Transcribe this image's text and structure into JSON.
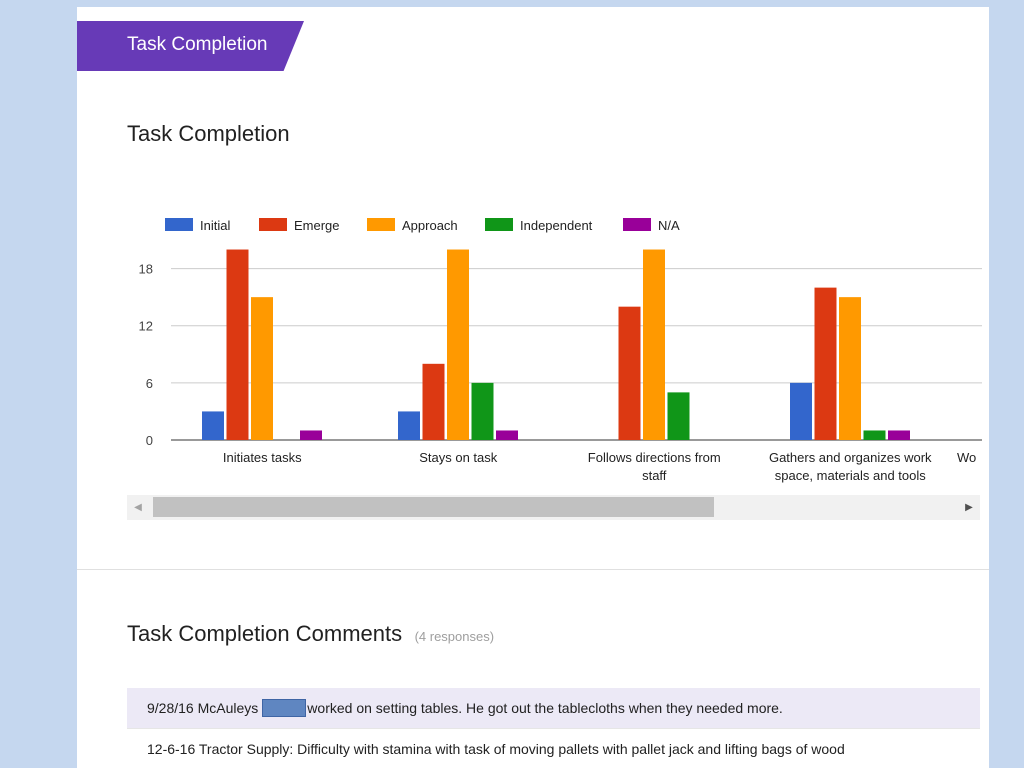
{
  "section": {
    "label": "Task Completion"
  },
  "question": {
    "title": "Task Completion"
  },
  "chart_data": {
    "type": "bar",
    "title": "",
    "xlabel": "",
    "ylabel": "",
    "ylim": [
      0,
      21
    ],
    "yticks": [
      0,
      6,
      12,
      18
    ],
    "grid": true,
    "legend_position": "top-left",
    "categories": [
      [
        "Initiates tasks"
      ],
      [
        "Stays on task"
      ],
      [
        "Follows directions from",
        "staff"
      ],
      [
        "Gathers and organizes work",
        "space, materials and tools"
      ],
      [
        "Wo"
      ]
    ],
    "series": [
      {
        "name": "Initial",
        "color": "#3366cc",
        "values": [
          3,
          3,
          0,
          6,
          null
        ]
      },
      {
        "name": "Emerge",
        "color": "#dc3912",
        "values": [
          20,
          8,
          14,
          16,
          null
        ]
      },
      {
        "name": "Approach",
        "color": "#ff9900",
        "values": [
          15,
          20,
          20,
          15,
          null
        ]
      },
      {
        "name": "Independent",
        "color": "#109618",
        "values": [
          0,
          6,
          5,
          1,
          null
        ]
      },
      {
        "name": "N/A",
        "color": "#990099",
        "values": [
          1,
          1,
          0,
          1,
          null
        ]
      }
    ]
  },
  "comments": {
    "title": "Task Completion Comments",
    "count": "(4 responses)",
    "responses": [
      {
        "before": "9/28/16 McAuleys",
        "after": "worked on setting tables. He got out the tablecloths when they needed more."
      },
      {
        "text": "12-6-16 Tractor Supply: Difficulty with stamina with task of moving pallets with pallet jack and lifting bags of wood"
      }
    ]
  },
  "icons": {
    "scroll_left": "triangle-left-icon",
    "scroll_right": "triangle-right-icon"
  }
}
